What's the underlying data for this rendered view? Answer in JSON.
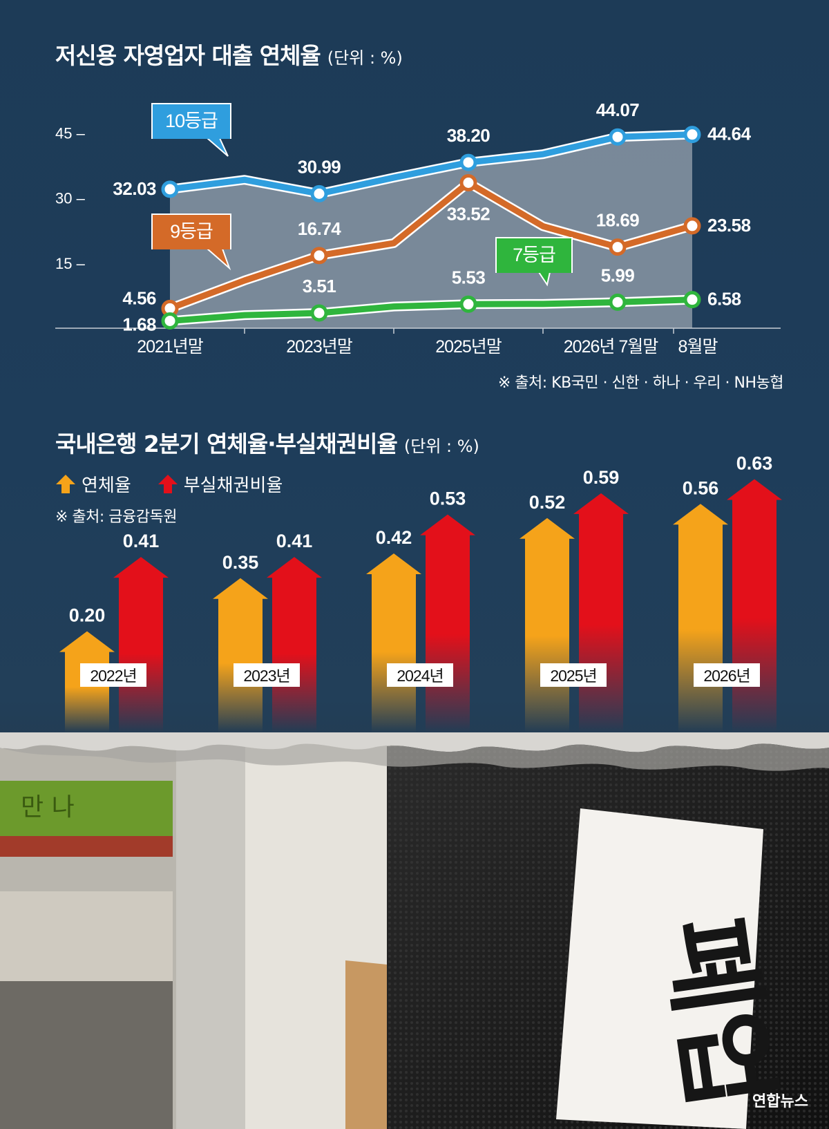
{
  "chart_data": [
    {
      "type": "line",
      "title": "저신용 자영업자 대출 연체율",
      "unit_label": "(단위 : %)",
      "categories": [
        "2021년말",
        "2023년말",
        "2025년말",
        "2026년 7월말",
        "8월말"
      ],
      "yticks": [
        "45",
        "30",
        "15"
      ],
      "ylim": [
        0,
        50
      ],
      "series": [
        {
          "name": "10등급",
          "color": "#2f9ede",
          "points": [
            [
              0,
              32.03
            ],
            [
              1,
              34.2
            ],
            [
              2,
              30.99
            ],
            [
              3,
              34.7
            ],
            [
              4,
              38.2
            ],
            [
              5,
              40.1
            ],
            [
              6,
              44.07
            ],
            [
              7,
              44.64
            ]
          ],
          "labeled": [
            [
              0,
              "32.03"
            ],
            [
              2,
              "30.99"
            ],
            [
              4,
              "38.20"
            ],
            [
              6,
              "44.07"
            ],
            [
              7,
              "44.64"
            ]
          ]
        },
        {
          "name": "9등급",
          "color": "#d46a28",
          "points": [
            [
              0,
              4.56
            ],
            [
              1,
              11.0
            ],
            [
              2,
              16.74
            ],
            [
              3,
              19.6
            ],
            [
              4,
              33.52
            ],
            [
              5,
              23.5
            ],
            [
              6,
              18.69
            ],
            [
              7,
              23.58
            ]
          ],
          "labeled": [
            [
              0,
              "4.56"
            ],
            [
              2,
              "16.74"
            ],
            [
              4,
              "33.52"
            ],
            [
              6,
              "18.69"
            ],
            [
              7,
              "23.58"
            ]
          ]
        },
        {
          "name": "7등급",
          "color": "#2fb53d",
          "points": [
            [
              0,
              1.68
            ],
            [
              1,
              3.0
            ],
            [
              2,
              3.51
            ],
            [
              3,
              5.0
            ],
            [
              4,
              5.53
            ],
            [
              5,
              5.6
            ],
            [
              6,
              5.99
            ],
            [
              7,
              6.58
            ]
          ],
          "labeled": [
            [
              0,
              "1.68"
            ],
            [
              2,
              "3.51"
            ],
            [
              4,
              "5.53"
            ],
            [
              6,
              "5.99"
            ],
            [
              7,
              "6.58"
            ]
          ]
        }
      ],
      "source": "※ 출처: KB국민 · 신한 · 하나 · 우리 · NH농협"
    },
    {
      "type": "bar",
      "title": "국내은행 2분기 연체율·부실채권비율",
      "unit_label": "(단위 : %)",
      "categories": [
        "2022년",
        "2023년",
        "2024년",
        "2025년",
        "2026년"
      ],
      "series": [
        {
          "name": "연체율",
          "color": "#f5a31a",
          "values": [
            0.2,
            0.35,
            0.42,
            0.52,
            0.56
          ],
          "labels": [
            "0.20",
            "0.35",
            "0.42",
            "0.52",
            "0.56"
          ]
        },
        {
          "name": "부실채권비율",
          "color": "#e3101a",
          "values": [
            0.41,
            0.41,
            0.53,
            0.59,
            0.63
          ],
          "labels": [
            "0.41",
            "0.41",
            "0.53",
            "0.59",
            "0.63"
          ]
        }
      ],
      "source": "※ 출처: 금융감독원"
    }
  ],
  "photo": {
    "sign_text": "폐업",
    "shop_sign": "만 나",
    "credit": "연합뉴스"
  }
}
